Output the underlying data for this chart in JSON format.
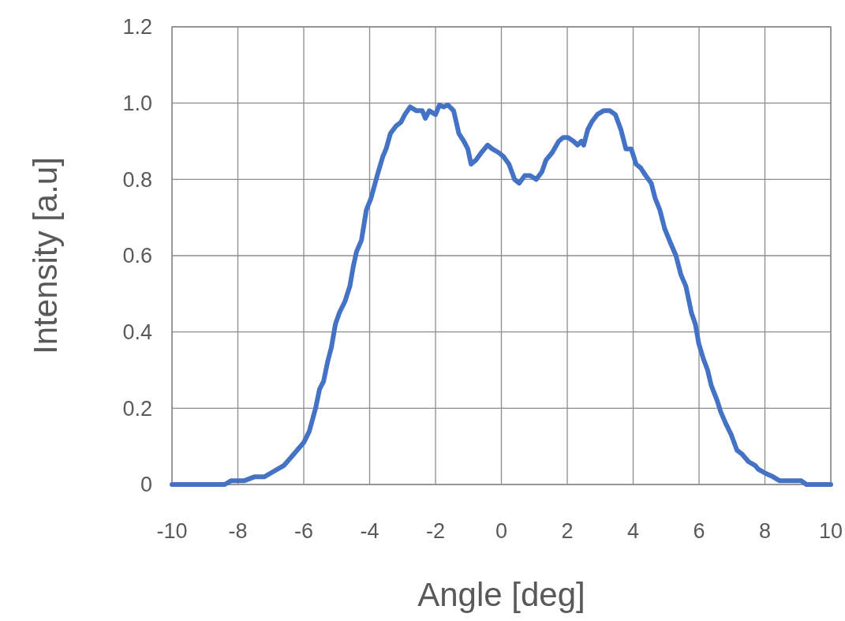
{
  "chart_data": {
    "type": "line",
    "xlabel": "Angle [deg]",
    "ylabel": "Intensity [a.u]",
    "xlim": [
      -10,
      10
    ],
    "xticks": [
      -10,
      -8,
      -6,
      -4,
      -2,
      0,
      2,
      4,
      6,
      8,
      10
    ],
    "ylim": [
      0,
      1.2
    ],
    "yticks": [
      0,
      {
        "value": 0.2,
        "label": "0.2"
      },
      {
        "value": 0.4,
        "label": "0.4"
      },
      {
        "value": 0.6,
        "label": "0.6"
      },
      {
        "value": 0.8,
        "label": "0.8"
      },
      {
        "value": 1,
        "label": "1.0"
      },
      {
        "value": 1.2,
        "label": "1.2"
      }
    ],
    "grid": true,
    "marker": "none",
    "line_style": "solid",
    "series": [
      {
        "color": "#4472c4",
        "x": [
          -10,
          -8.4,
          -8.2,
          -7.8,
          -7.5,
          -7.2,
          -7.0,
          -6.8,
          -6.6,
          -6.4,
          -6.2,
          -6.0,
          -5.83,
          -5.64,
          -5.52,
          -5.4,
          -5.28,
          -5.16,
          -5.04,
          -4.92,
          -4.75,
          -4.6,
          -4.5,
          -4.4,
          -4.25,
          -4.1,
          -3.96,
          -3.77,
          -3.6,
          -3.5,
          -3.37,
          -3.2,
          -3.05,
          -2.93,
          -2.77,
          -2.58,
          -2.4,
          -2.31,
          -2.19,
          -2.0,
          -1.88,
          -1.76,
          -1.62,
          -1.45,
          -1.29,
          -1.14,
          -1.02,
          -0.92,
          -0.78,
          -0.61,
          -0.42,
          -0.28,
          -0.08,
          0.06,
          0.23,
          0.4,
          0.54,
          0.71,
          0.87,
          1.06,
          1.23,
          1.35,
          1.54,
          1.74,
          1.88,
          2.02,
          2.19,
          2.31,
          2.43,
          2.5,
          2.62,
          2.74,
          2.91,
          3.1,
          3.29,
          3.46,
          3.63,
          3.78,
          3.94,
          4.09,
          4.23,
          4.38,
          4.55,
          4.67,
          4.81,
          4.96,
          5.15,
          5.3,
          5.45,
          5.6,
          5.77,
          5.89,
          5.99,
          6.13,
          6.26,
          6.37,
          6.55,
          6.66,
          6.81,
          6.98,
          7.15,
          7.3,
          7.5,
          7.7,
          7.8,
          8.0,
          8.25,
          8.44,
          8.66,
          8.85,
          9.1,
          9.26,
          10
        ],
        "values": [
          0,
          0,
          0.01,
          0.01,
          0.02,
          0.02,
          0.03,
          0.04,
          0.05,
          0.07,
          0.09,
          0.11,
          0.14,
          0.2,
          0.25,
          0.27,
          0.32,
          0.36,
          0.42,
          0.45,
          0.48,
          0.52,
          0.57,
          0.61,
          0.64,
          0.72,
          0.75,
          0.81,
          0.86,
          0.88,
          0.92,
          0.94,
          0.95,
          0.97,
          0.99,
          0.98,
          0.98,
          0.96,
          0.98,
          0.97,
          0.995,
          0.99,
          0.995,
          0.98,
          0.92,
          0.9,
          0.88,
          0.84,
          0.85,
          0.87,
          0.89,
          0.88,
          0.87,
          0.86,
          0.84,
          0.8,
          0.79,
          0.81,
          0.81,
          0.8,
          0.82,
          0.85,
          0.87,
          0.9,
          0.91,
          0.91,
          0.9,
          0.89,
          0.9,
          0.89,
          0.93,
          0.95,
          0.97,
          0.98,
          0.98,
          0.97,
          0.93,
          0.88,
          0.88,
          0.84,
          0.83,
          0.81,
          0.79,
          0.75,
          0.72,
          0.67,
          0.63,
          0.6,
          0.55,
          0.52,
          0.45,
          0.42,
          0.37,
          0.33,
          0.3,
          0.26,
          0.22,
          0.19,
          0.16,
          0.13,
          0.09,
          0.08,
          0.06,
          0.05,
          0.04,
          0.03,
          0.02,
          0.01,
          0.01,
          0.01,
          0.01,
          0,
          0
        ]
      }
    ]
  }
}
